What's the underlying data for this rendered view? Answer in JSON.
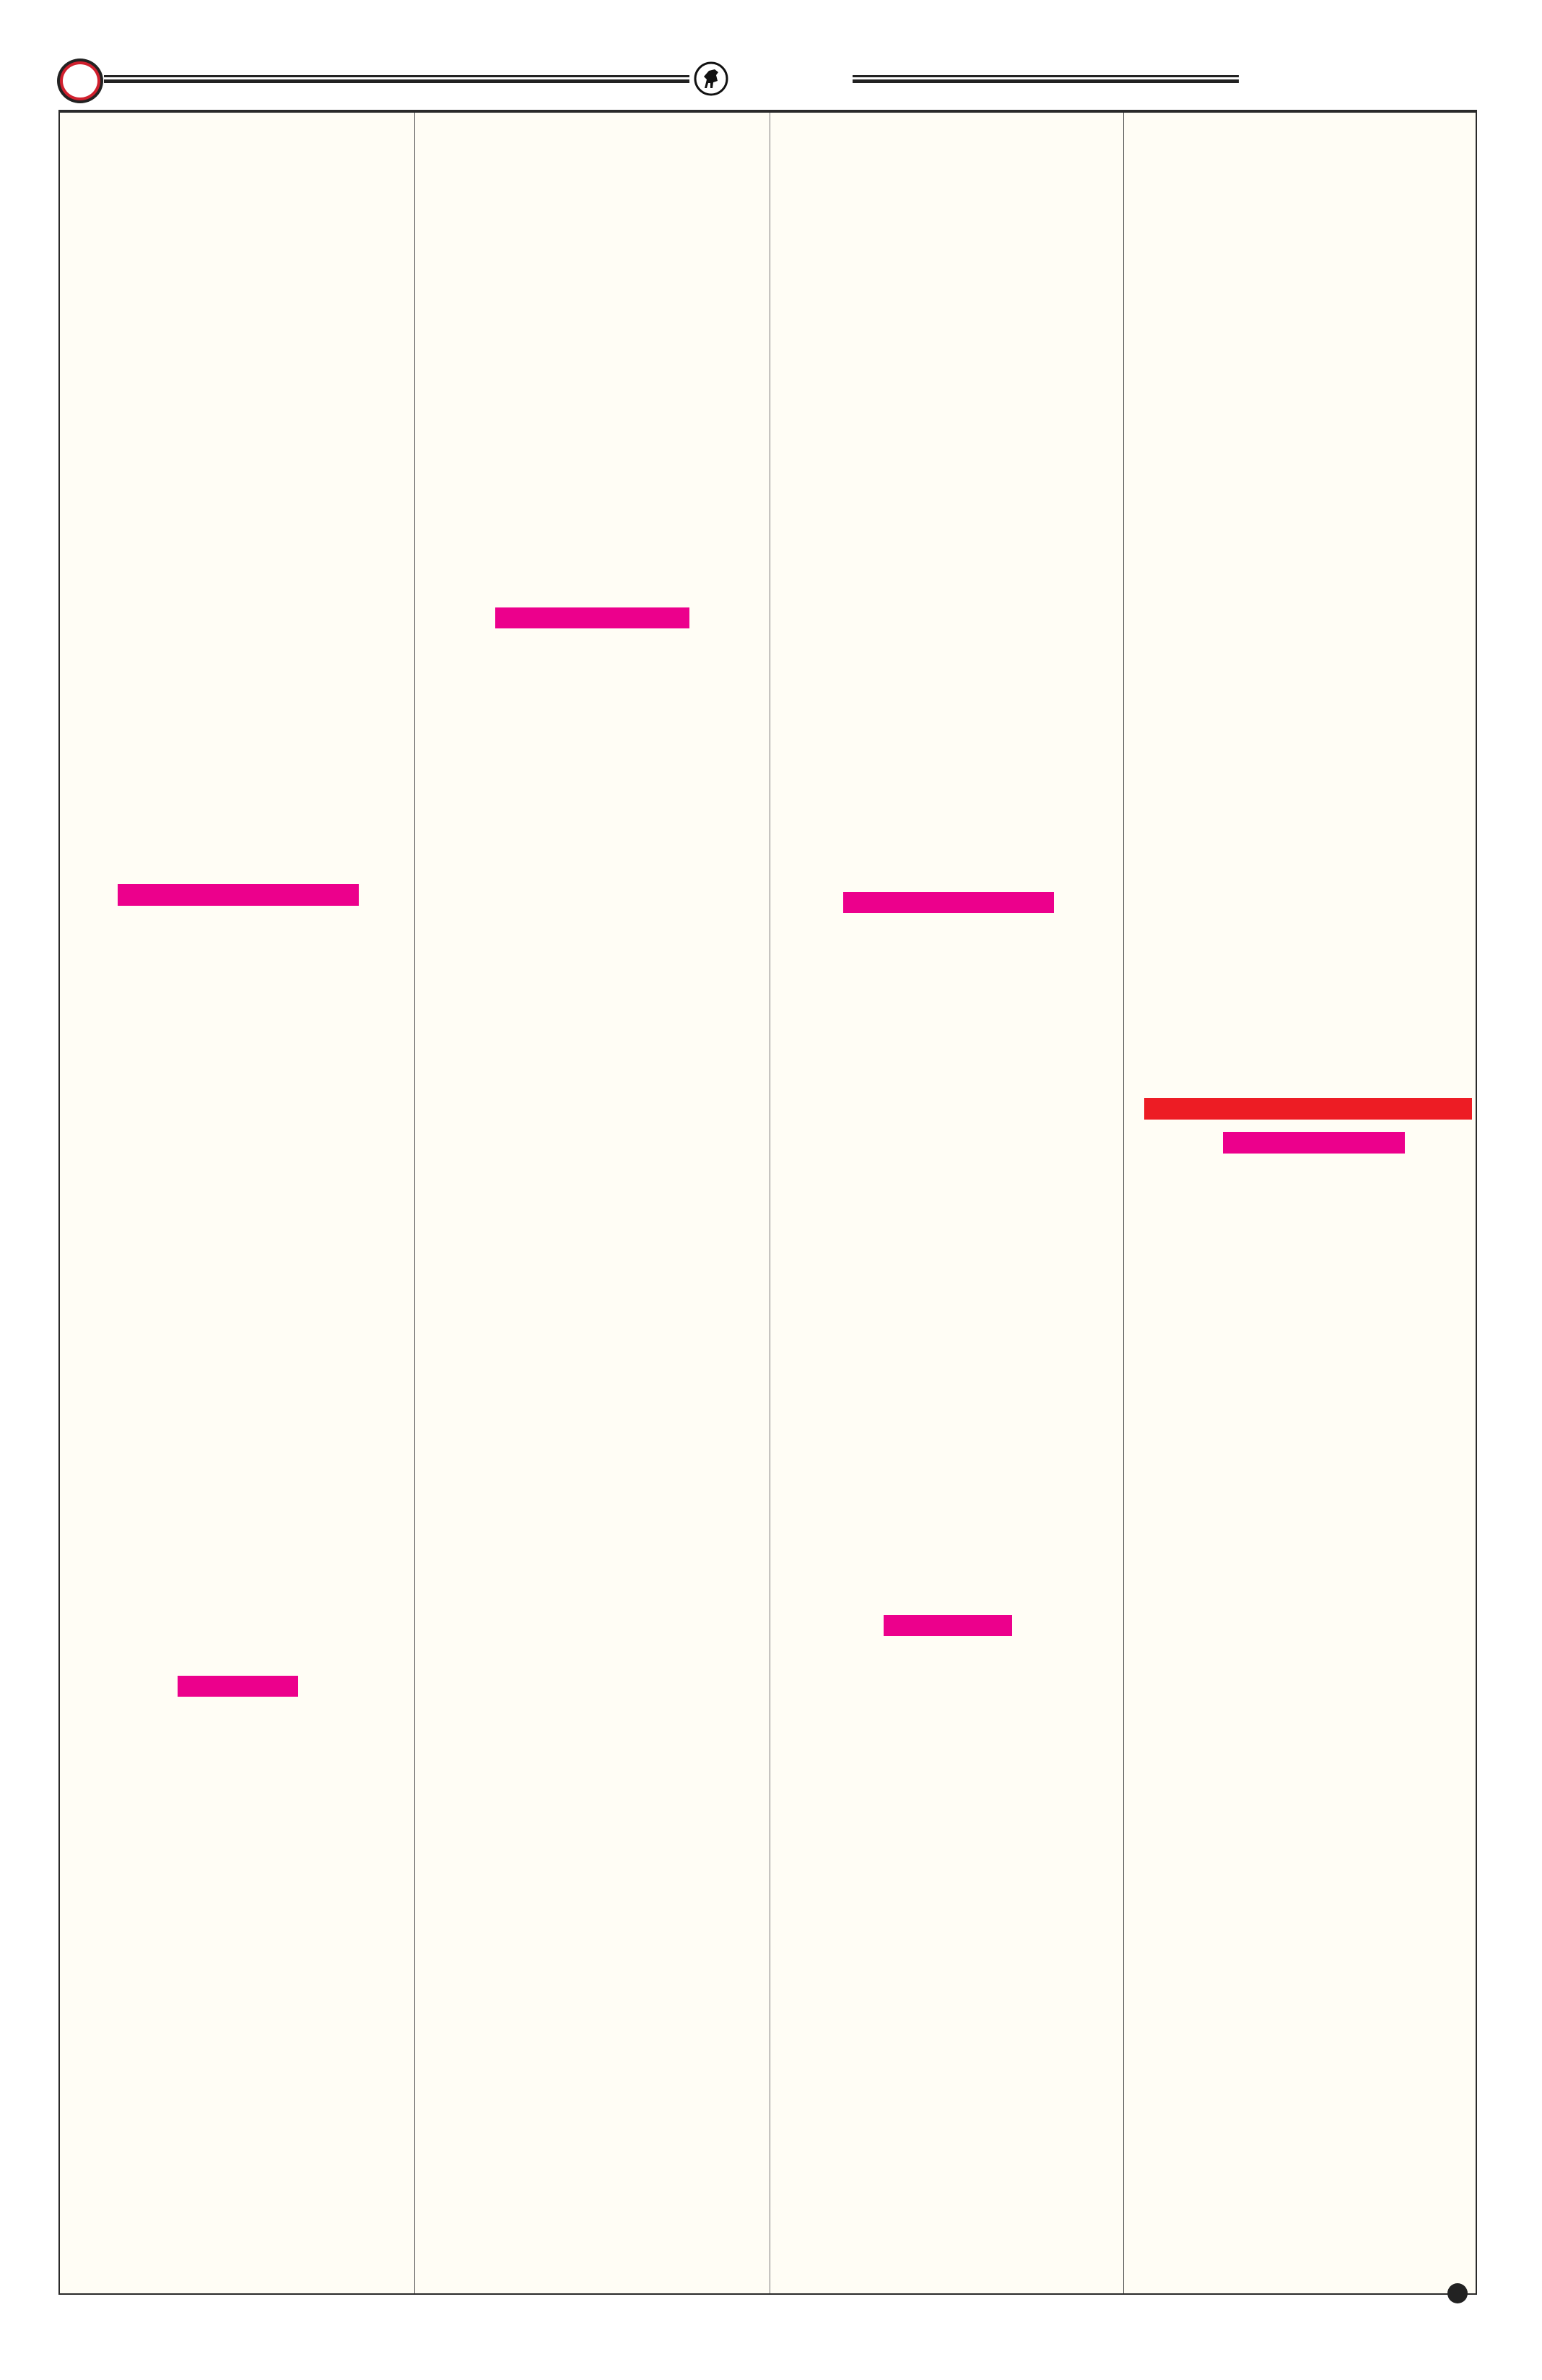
{
  "colors": {
    "background": "#ffffff",
    "panel": "#fffdf5",
    "border": "#2a2a2a",
    "magenta_bar": "#ec008c",
    "red_bar": "#ed1c24",
    "header_ring": "#d0202e"
  },
  "header": {
    "left_badge_icon": "ring-badge-icon",
    "emblem_icon": "rearing-horse-emblem-icon"
  },
  "columns": 4,
  "highlight_bars": [
    {
      "column": 1,
      "color": "magenta"
    },
    {
      "column": 1,
      "color": "magenta"
    },
    {
      "column": 2,
      "color": "magenta"
    },
    {
      "column": 3,
      "color": "magenta"
    },
    {
      "column": 3,
      "color": "magenta"
    },
    {
      "column": 4,
      "color": "red"
    },
    {
      "column": 4,
      "color": "magenta"
    }
  ],
  "footer": {
    "page_marker_icon": "filled-dot-icon"
  }
}
